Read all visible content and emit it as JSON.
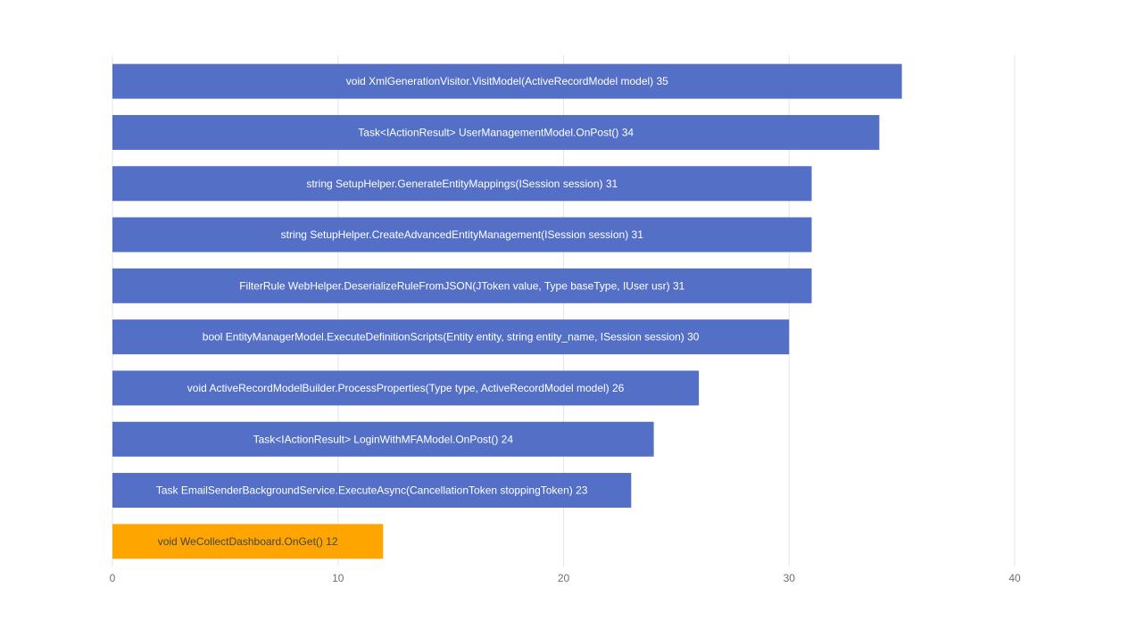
{
  "chart_data": {
    "type": "bar",
    "orientation": "horizontal",
    "categories": [
      "void XmlGenerationVisitor.VisitModel(ActiveRecordModel model)",
      "Task<IActionResult> UserManagementModel.OnPost()",
      "string SetupHelper.GenerateEntityMappings(ISession session)",
      "string SetupHelper.CreateAdvancedEntityManagement(ISession session)",
      "FilterRule WebHelper.DeserializeRuleFromJSON(JToken value, Type baseType, IUser usr)",
      "bool EntityManagerModel.ExecuteDefinitionScripts(Entity entity, string entity_name, ISession session)",
      "void ActiveRecordModelBuilder.ProcessProperties(Type type, ActiveRecordModel model)",
      "Task<IActionResult> LoginWithMFAModel.OnPost()",
      "Task EmailSenderBackgroundService.ExecuteAsync(CancellationToken stoppingToken)",
      "void WeCollectDashboard.OnGet()"
    ],
    "values": [
      35,
      34,
      31,
      31,
      31,
      30,
      26,
      24,
      23,
      12
    ],
    "highlight_index": 9,
    "colors": {
      "default": "#5470c6",
      "highlight": "#ffa500",
      "label_default": "#ffffff",
      "label_highlight": "#444444",
      "grid": "#e0e6f1",
      "tick": "#6e7079"
    },
    "xlim": [
      0,
      40
    ],
    "xticks": [
      0,
      10,
      20,
      30,
      40
    ],
    "grid": true,
    "title": "",
    "xlabel": "",
    "ylabel": "",
    "data_labels": "inside-center"
  }
}
